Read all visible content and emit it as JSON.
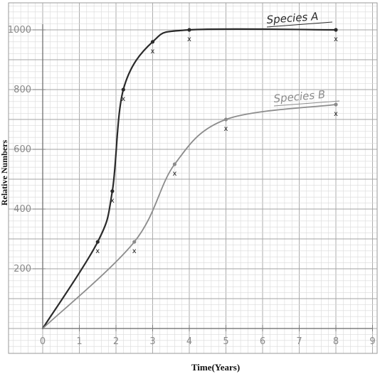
{
  "chart_data": {
    "type": "line",
    "xlabel": "Time(Years)",
    "ylabel": "Relative Numbers",
    "xlim": [
      0,
      9
    ],
    "ylim": [
      0,
      1000
    ],
    "x_ticks": [
      "0",
      "1",
      "2",
      "3",
      "4",
      "5",
      "6",
      "7",
      "8",
      "9"
    ],
    "y_ticks": [
      "200",
      "400",
      "600",
      "800",
      "1000"
    ],
    "y_tick_values": [
      200,
      400,
      600,
      800,
      1000
    ],
    "grid": true,
    "marker_symbol": "x",
    "series": [
      {
        "name": "Species A",
        "color": "#2a2a2a",
        "x": [
          0,
          1.5,
          1.9,
          2.2,
          3.0,
          4.0,
          8.0
        ],
        "y": [
          0,
          290,
          460,
          800,
          960,
          1000,
          1000
        ]
      },
      {
        "name": "Species B",
        "color": "#8c8c8c",
        "x": [
          0,
          2.5,
          3.6,
          5.0,
          8.0
        ],
        "y": [
          0,
          290,
          550,
          700,
          750
        ]
      }
    ]
  }
}
